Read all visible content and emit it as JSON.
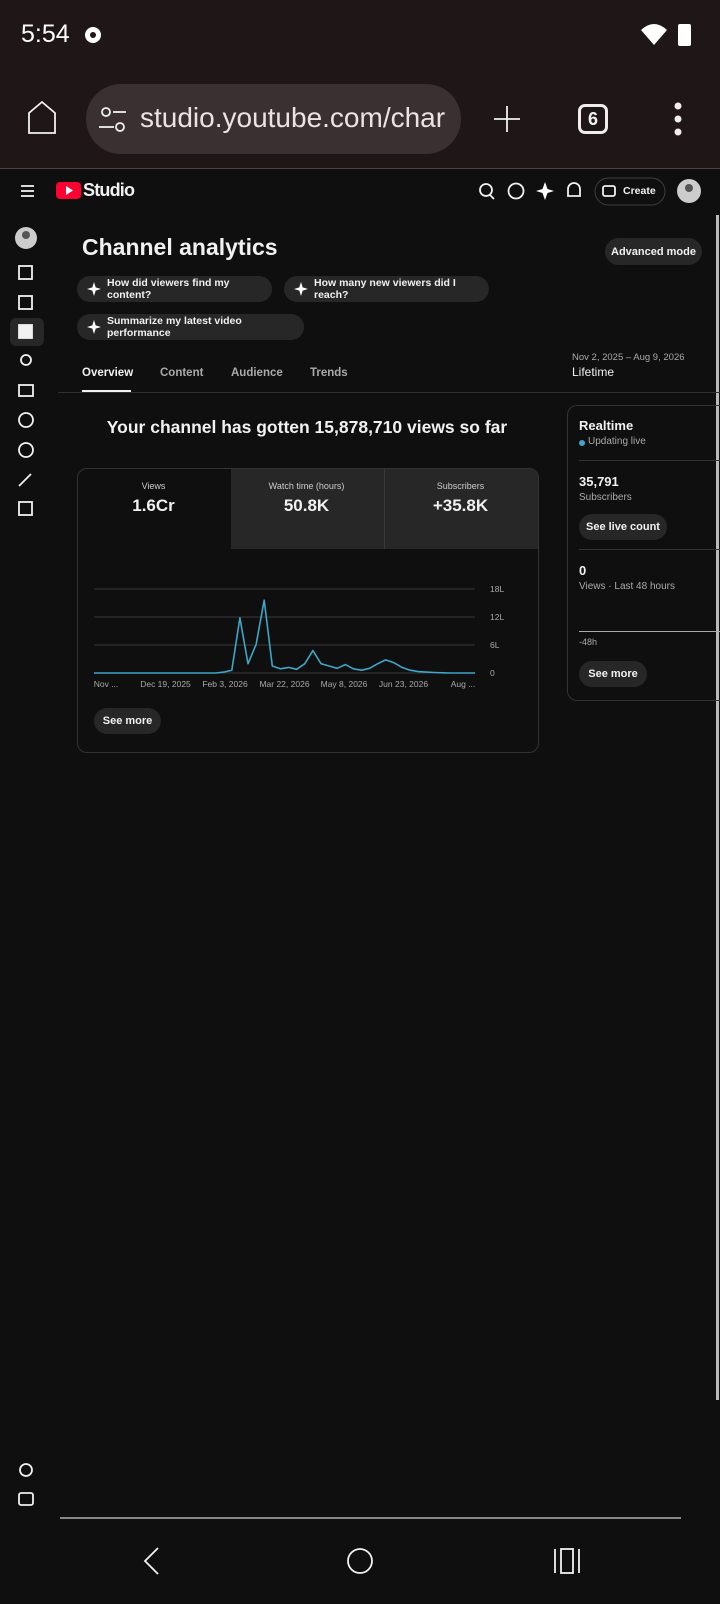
{
  "status_bar": {
    "time": "5:54"
  },
  "browser": {
    "url": "studio.youtube.com/char",
    "tab_count": 6
  },
  "studio": {
    "logo": "Studio",
    "create": "Create"
  },
  "page": {
    "title": "Channel analytics",
    "advanced_mode": "Advanced mode",
    "prompts": [
      "How did viewers find my content?",
      "How many new viewers did I reach?",
      "Summarize my latest video performance"
    ],
    "tabs": [
      "Overview",
      "Content",
      "Audience",
      "Trends"
    ],
    "date_range": "Nov 2, 2025 – Aug 9, 2026",
    "period": "Lifetime",
    "headline": "Your channel has gotten 15,878,710 views so far"
  },
  "overview_card": {
    "metrics": [
      {
        "label": "Views",
        "value": "1.6Cr"
      },
      {
        "label": "Watch time (hours)",
        "value": "50.8K"
      },
      {
        "label": "Subscribers",
        "value": "+35.8K"
      }
    ],
    "chart": {
      "type": "line",
      "color": "#3ea6c6",
      "xtick_labels": [
        "Nov ...",
        "Dec 19, 2025",
        "Feb 3, 2026",
        "Mar 22, 2026",
        "May 8, 2026",
        "Jun 23, 2026",
        "Aug ..."
      ],
      "values": [
        0,
        0,
        0,
        0,
        0,
        0,
        0,
        0,
        0,
        0,
        0,
        0,
        0,
        0,
        0,
        0,
        20000,
        60000,
        1180000,
        200000,
        610000,
        1560000,
        150000,
        90000,
        120000,
        80000,
        200000,
        480000,
        200000,
        150000,
        100000,
        180000,
        90000,
        60000,
        100000,
        200000,
        280000,
        220000,
        120000,
        60000,
        30000,
        20000,
        10000,
        5000,
        0,
        0,
        0,
        0
      ],
      "ylim": [
        0,
        1800000
      ],
      "yticks": [
        0,
        {
          "value": 600000,
          "label": "6L"
        },
        {
          "value": 1200000,
          "label": "12L"
        },
        {
          "value": 1800000,
          "label": "18L"
        }
      ],
      "grid": true
    },
    "see_more": "See more"
  },
  "realtime": {
    "title": "Realtime",
    "status": "Updating live",
    "subscribers_value": "35,791",
    "subscribers_label": "Subscribers",
    "see_live_count": "See live count",
    "views_value": "0",
    "views_label": "Views · Last 48 hours",
    "axis_label": "-48h",
    "see_more": "See more"
  }
}
